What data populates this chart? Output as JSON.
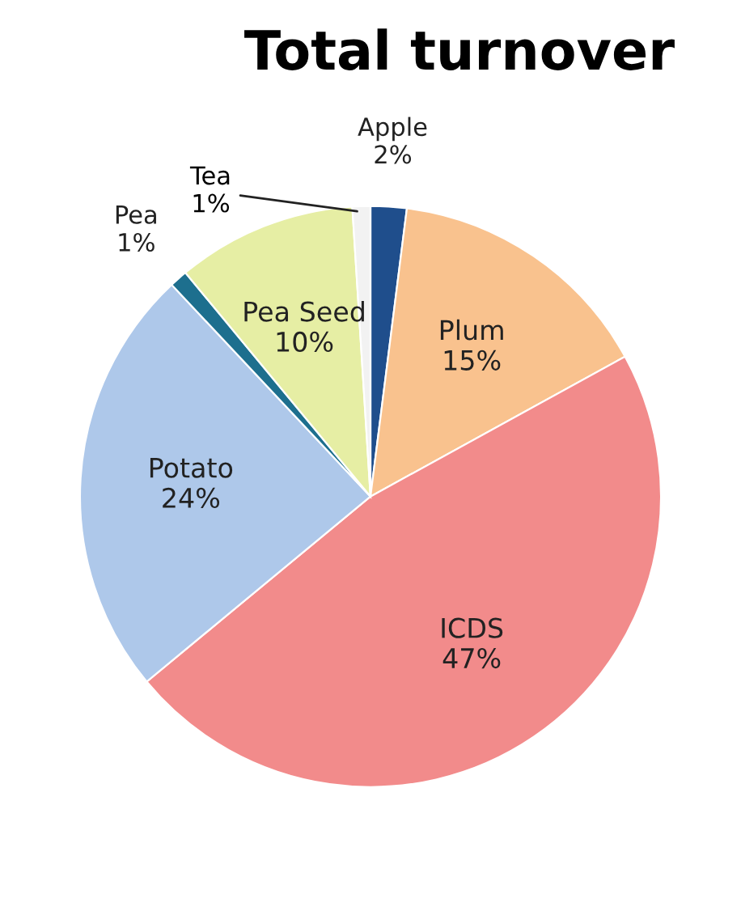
{
  "chart_data": {
    "type": "pie",
    "title": "Total turnover",
    "categories": [
      "Apple",
      "Plum",
      "ICDS",
      "Potato",
      "Pea",
      "Pea Seed",
      "Tea"
    ],
    "values": [
      2,
      15,
      47,
      24,
      1,
      10,
      1
    ],
    "value_labels": [
      "2%",
      "15%",
      "47%",
      "24%",
      "1%",
      "10%",
      "1%"
    ],
    "colors": [
      "#1f4e8c",
      "#f9c28e",
      "#f28b8b",
      "#aec8ea",
      "#1d6f8e",
      "#e6eea4",
      "#f2f2f2"
    ]
  }
}
